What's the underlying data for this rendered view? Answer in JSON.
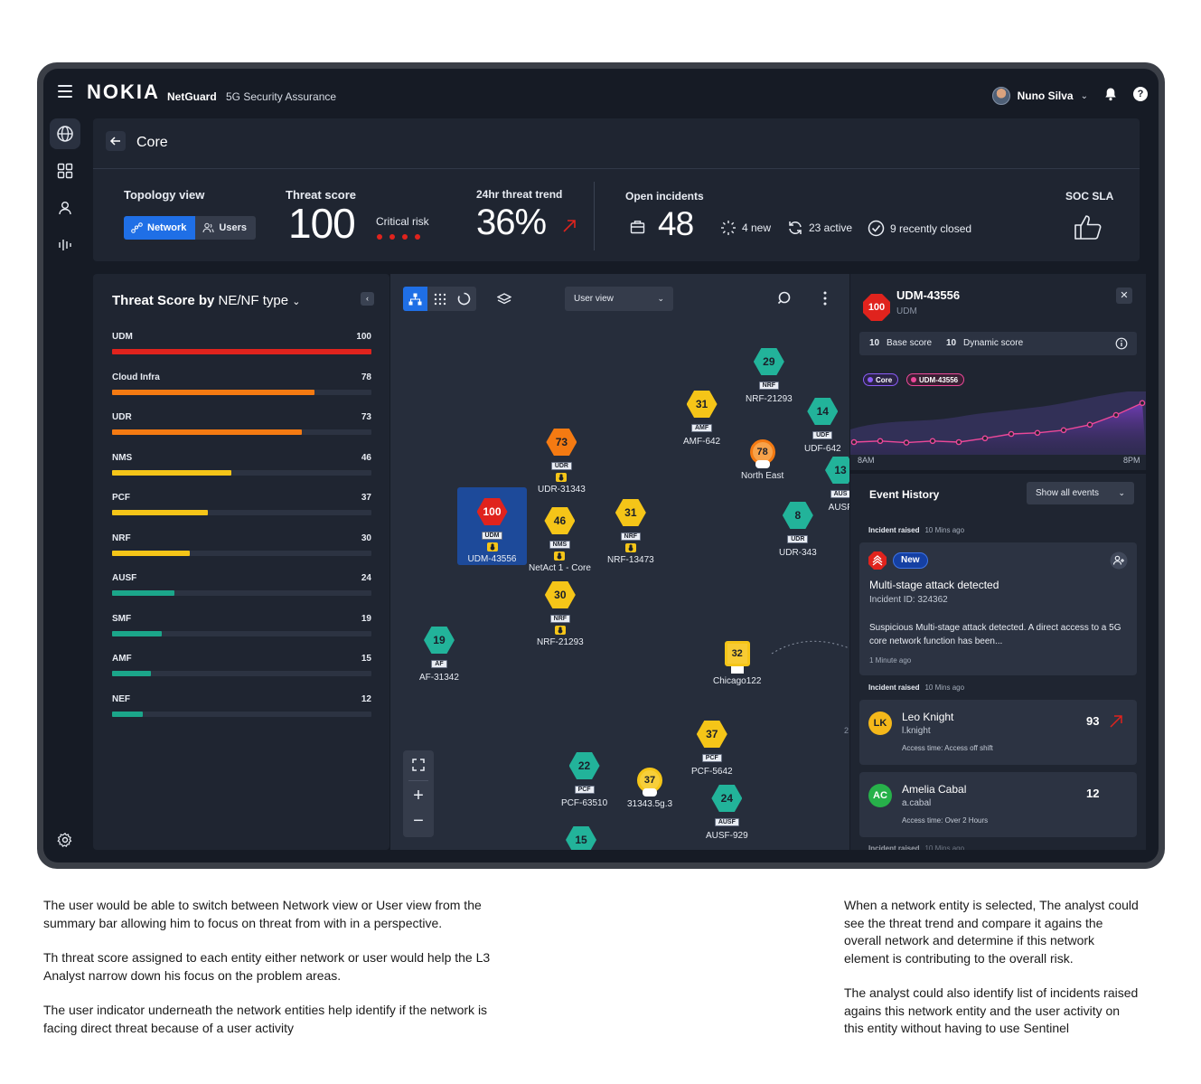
{
  "app": {
    "logo": "NOKIA",
    "name": "NetGuard",
    "subtitle": "5G Security Assurance",
    "user": "Nuno Silva"
  },
  "page": {
    "title": "Core"
  },
  "summary": {
    "topology_label": "Topology view",
    "view_network": "Network",
    "view_users": "Users",
    "threat_label": "Threat score",
    "threat_value": "100",
    "threat_level": "Critical risk",
    "trend_label": "24hr threat trend",
    "trend_value": "36%",
    "incidents_label": "Open incidents",
    "incidents_value": "48",
    "new": "4 new",
    "active": "23 active",
    "closed": "9 recently closed",
    "sla_label": "SOC SLA"
  },
  "threat_panel": {
    "title_bold": "Threat Score by",
    "title_select": "NE/NF type",
    "max": 100,
    "items": [
      {
        "name": "UDM",
        "value": 100,
        "color": "#e0231d"
      },
      {
        "name": "Cloud Infra",
        "value": 78,
        "color": "#f47a12"
      },
      {
        "name": "UDR",
        "value": 73,
        "color": "#f47a12"
      },
      {
        "name": "NMS",
        "value": 46,
        "color": "#f5c518"
      },
      {
        "name": "PCF",
        "value": 37,
        "color": "#f5c518"
      },
      {
        "name": "NRF",
        "value": 30,
        "color": "#f5c518"
      },
      {
        "name": "AUSF",
        "value": 24,
        "color": "#1ba68a"
      },
      {
        "name": "SMF",
        "value": 19,
        "color": "#1ba68a"
      },
      {
        "name": "AMF",
        "value": 15,
        "color": "#1ba68a"
      },
      {
        "name": "NEF",
        "value": 12,
        "color": "#1ba68a"
      }
    ]
  },
  "map": {
    "view_select": "User view",
    "nodes": [
      {
        "score": "29",
        "type": "NRF",
        "label": "NRF-21293"
      },
      {
        "score": "31",
        "type": "AMF",
        "label": "AMF-642"
      },
      {
        "score": "14",
        "type": "UDF",
        "label": "UDF-642"
      },
      {
        "score": "78",
        "type": "",
        "label": "North East"
      },
      {
        "score": "73",
        "type": "UDR",
        "label": "UDR-31343"
      },
      {
        "score": "100",
        "type": "UDM",
        "label": "UDM-43556"
      },
      {
        "score": "46",
        "type": "NMS",
        "label": "NetAct 1 - Core"
      },
      {
        "score": "31",
        "type": "NRF",
        "label": "NRF-13473"
      },
      {
        "score": "8",
        "type": "UDR",
        "label": "UDR-343"
      },
      {
        "score": "13",
        "type": "AUS",
        "label": "AUSF"
      },
      {
        "score": "30",
        "type": "NRF",
        "label": "NRF-21293"
      },
      {
        "score": "19",
        "type": "AF",
        "label": "AF-31342"
      },
      {
        "score": "32",
        "type": "",
        "label": "Chicago122"
      },
      {
        "score": "37",
        "type": "PCF",
        "label": "PCF-5642"
      },
      {
        "score": "22",
        "type": "PCF",
        "label": "PCF-63510"
      },
      {
        "score": "37",
        "type": "",
        "label": "31343.5g.3"
      },
      {
        "score": "24",
        "type": "AUSF",
        "label": "AUSF-929"
      },
      {
        "score": "15",
        "type": "",
        "label": ""
      }
    ],
    "edge_fragment": "2"
  },
  "detail": {
    "score": "100",
    "title": "UDM-43556",
    "subtitle": "UDM",
    "base_score_value": "10",
    "base_score_label": "Base score",
    "dynamic_score_value": "10",
    "dynamic_score_label": "Dynamic score",
    "chip_core": "Core",
    "chip_entity": "UDM-43556",
    "axis_start": "8AM",
    "axis_end": "8PM",
    "trend_series": [
      0.1,
      0.12,
      0.09,
      0.12,
      0.1,
      0.17,
      0.25,
      0.27,
      0.32,
      0.42,
      0.6,
      0.82
    ],
    "event_history": "Event History",
    "event_filter": "Show all events",
    "incident_raised": "Incident raised",
    "incident_time": "10 Mins ago",
    "incident": {
      "pill": "New",
      "title": "Multi-stage attack detected",
      "id": "Incident ID: 324362",
      "desc": "Suspicious Multi-stage attack detected. A direct access to a 5G core network function has been...",
      "time": "1 Minute ago"
    },
    "users": [
      {
        "initials": "LK",
        "name": "Leo Knight",
        "id": "l.knight",
        "access": "Access time: Access off shift",
        "score": "93"
      },
      {
        "initials": "AC",
        "name": "Amelia Cabal",
        "id": "a.cabal",
        "access": "Access time: Over 2 Hours",
        "score": "12"
      }
    ]
  },
  "notes": {
    "left": [
      "The user would be able to switch between Network view or User view from the summary bar allowing him to focus on threat from with in a perspective.",
      "Th threat score assigned to each entity either network or user would help the L3 Analyst narrow down his focus on the problem areas.",
      "The user indicator underneath the network entities help identify if the network is facing direct threat because of a user activity"
    ],
    "right": [
      "When a network entity is selected, The analyst could see the threat trend and compare it agains the overall network and determine if this network element is contributing to the overall risk.",
      "The analyst could also identify list of incidents raised agains this network entity and the user activity on this entity without having to use Sentinel"
    ]
  }
}
